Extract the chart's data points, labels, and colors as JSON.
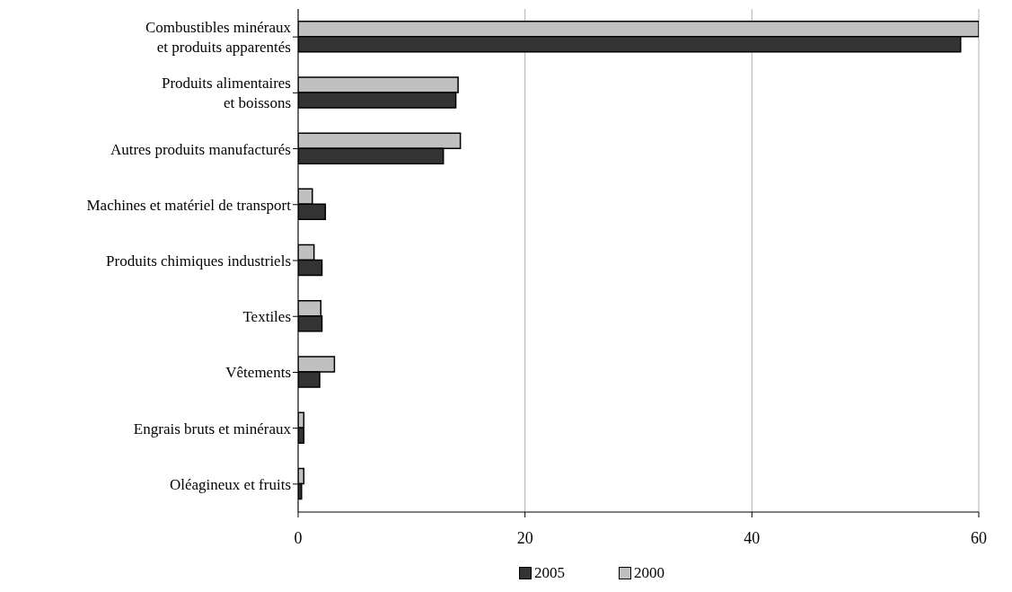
{
  "chart_data": {
    "type": "bar",
    "orientation": "horizontal",
    "categories": [
      "Combustibles minéraux\net produits apparentés",
      "Produits alimentaires\net boissons",
      "Autres produits manufacturés",
      "Machines et matériel de transport",
      "Produits chimiques industriels",
      "Textiles",
      "Vêtements",
      "Engrais bruts et minéraux",
      "Oléagineux et fruits"
    ],
    "series": [
      {
        "name": "2005",
        "color": "#333333",
        "values": [
          58.4,
          13.9,
          12.8,
          2.4,
          2.1,
          2.1,
          1.9,
          0.5,
          0.3
        ]
      },
      {
        "name": "2000",
        "color": "#c0c0c0",
        "values": [
          60,
          14.1,
          14.3,
          1.25,
          1.4,
          2.0,
          3.2,
          0.5,
          0.5
        ]
      }
    ],
    "xlim": [
      0,
      60
    ],
    "xticks": [
      0,
      20,
      40,
      60
    ],
    "grid": "x",
    "legend": "bottom"
  }
}
